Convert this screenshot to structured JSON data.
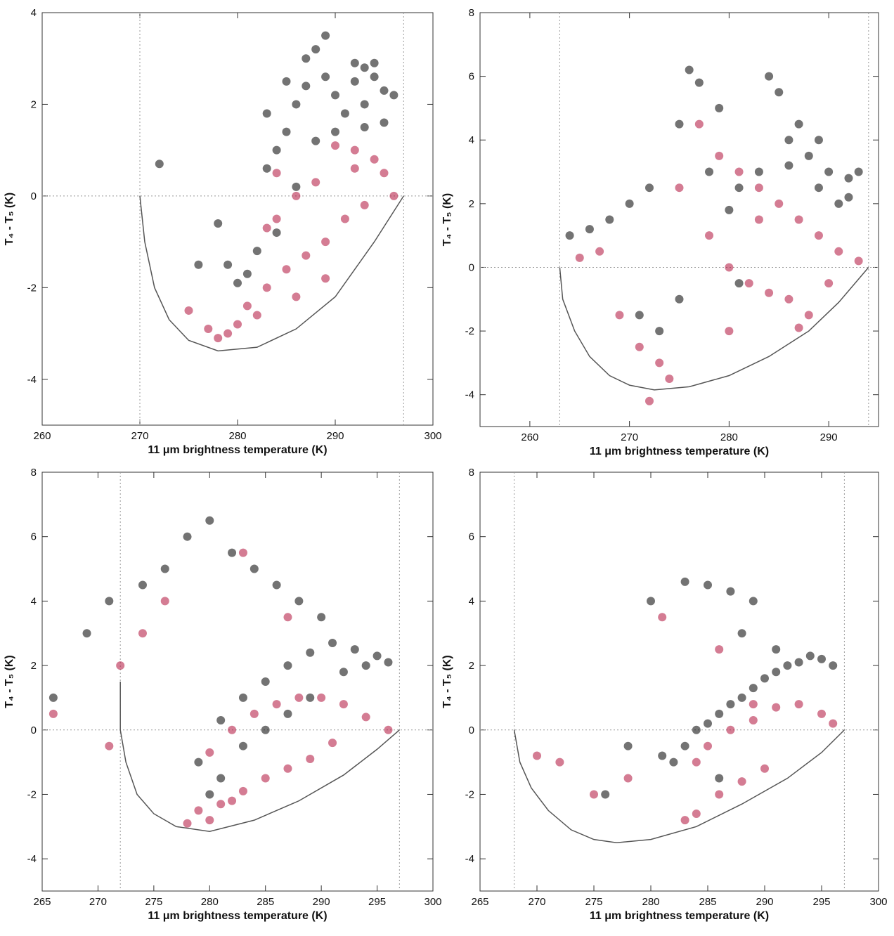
{
  "chart_data": [
    {
      "type": "scatter",
      "xlabel": "11 μm brightness temperature (K)",
      "ylabel": "T₄ - T₅ (K)",
      "xlim": [
        260,
        300
      ],
      "ylim": [
        -5,
        4
      ],
      "xticks": [
        260,
        270,
        280,
        290,
        300
      ],
      "yticks": [
        -4,
        -2,
        0,
        2,
        4
      ],
      "vlines": [
        270,
        297
      ],
      "hlines": [
        0
      ],
      "series": [
        {
          "color": "#000000",
          "x": [
            292,
            293,
            294,
            295,
            296,
            293,
            291,
            290,
            289,
            288,
            287,
            286,
            285,
            284,
            283,
            288,
            289,
            287,
            285,
            283,
            281,
            280,
            279,
            284,
            286,
            293,
            295,
            294,
            292,
            290,
            282,
            278,
            276,
            272
          ],
          "values": [
            2.5,
            2.8,
            2.6,
            2.3,
            2.2,
            2.0,
            1.8,
            2.2,
            2.6,
            3.2,
            2.4,
            2.0,
            1.4,
            1.0,
            0.6,
            1.2,
            3.5,
            3.0,
            2.5,
            1.8,
            -1.7,
            -1.9,
            -1.5,
            -0.8,
            0.2,
            1.5,
            1.6,
            2.9,
            2.9,
            1.4,
            -1.2,
            -0.6,
            -1.5,
            0.7
          ]
        },
        {
          "color": "#b0103a",
          "x": [
            295,
            296,
            294,
            292,
            290,
            288,
            286,
            284,
            283,
            291,
            293,
            289,
            287,
            285,
            283,
            281,
            280,
            279,
            278,
            282,
            286,
            289,
            277,
            275,
            284,
            292
          ],
          "values": [
            0.5,
            0.0,
            0.8,
            1.0,
            1.1,
            0.3,
            0.0,
            -0.5,
            -0.7,
            -0.5,
            -0.2,
            -1.0,
            -1.3,
            -1.6,
            -2.0,
            -2.4,
            -2.8,
            -3.0,
            -3.1,
            -2.6,
            -2.2,
            -1.8,
            -2.9,
            -2.5,
            0.5,
            0.6
          ]
        },
        {
          "type": "line",
          "color": "#555555",
          "x": [
            270,
            270.5,
            271.5,
            273,
            275,
            278,
            282,
            286,
            290,
            294,
            297
          ],
          "values": [
            0,
            -1,
            -2,
            -2.7,
            -3.15,
            -3.38,
            -3.3,
            -2.9,
            -2.2,
            -1.0,
            0
          ]
        }
      ]
    },
    {
      "type": "scatter",
      "xlabel": "11 μm brightness temperature (K)",
      "ylabel": "T₄ - T₅ (K)",
      "xlim": [
        255,
        295
      ],
      "ylim": [
        -5,
        8
      ],
      "xticks": [
        260,
        270,
        280,
        290
      ],
      "yticks": [
        -4,
        -2,
        0,
        2,
        4,
        6,
        8
      ],
      "vlines": [
        263,
        294
      ],
      "hlines": [
        0
      ],
      "series": [
        {
          "color": "#000000",
          "x": [
            288,
            290,
            292,
            293,
            289,
            287,
            285,
            284,
            286,
            291,
            283,
            281,
            279,
            277,
            276,
            275,
            278,
            280,
            272,
            270,
            268,
            266,
            264,
            271,
            273,
            275,
            281,
            286,
            289,
            292
          ],
          "values": [
            3.5,
            3.0,
            2.8,
            3.0,
            4.0,
            4.5,
            5.5,
            6.0,
            3.2,
            2.0,
            3.0,
            2.5,
            5.0,
            5.8,
            6.2,
            4.5,
            3.0,
            1.8,
            2.5,
            2.0,
            1.5,
            1.2,
            1.0,
            -1.5,
            -2.0,
            -1.0,
            -0.5,
            4.0,
            2.5,
            2.2
          ]
        },
        {
          "color": "#b0103a",
          "x": [
            293,
            291,
            289,
            287,
            285,
            283,
            281,
            279,
            278,
            280,
            282,
            284,
            286,
            288,
            290,
            277,
            275,
            273,
            271,
            269,
            267,
            265,
            272,
            274,
            280,
            283,
            287
          ],
          "values": [
            0.2,
            0.5,
            1.0,
            1.5,
            2.0,
            2.5,
            3.0,
            3.5,
            1.0,
            0.0,
            -0.5,
            -0.8,
            -1.0,
            -1.5,
            -0.5,
            4.5,
            2.5,
            -3.0,
            -2.5,
            -1.5,
            0.5,
            0.3,
            -4.2,
            -3.5,
            -2.0,
            1.5,
            -1.9
          ]
        },
        {
          "type": "line",
          "color": "#555555",
          "x": [
            263,
            263.3,
            264.5,
            266,
            268,
            270,
            272.5,
            276,
            280,
            284,
            288,
            291,
            294
          ],
          "values": [
            0,
            -1,
            -2,
            -2.8,
            -3.4,
            -3.7,
            -3.85,
            -3.75,
            -3.4,
            -2.8,
            -2.0,
            -1.1,
            0
          ]
        }
      ]
    },
    {
      "type": "scatter",
      "xlabel": "11 μm brightness temperature (K)",
      "ylabel": "T₄ - T₅ (K)",
      "xlim": [
        265,
        300
      ],
      "ylim": [
        -5,
        8
      ],
      "xticks": [
        265,
        270,
        275,
        280,
        285,
        290,
        295,
        300
      ],
      "yticks": [
        -4,
        -2,
        0,
        2,
        4,
        6,
        8
      ],
      "vlines": [
        272,
        297
      ],
      "hlines": [
        0
      ],
      "series": [
        {
          "color": "#000000",
          "x": [
            294,
            296,
            295,
            293,
            291,
            289,
            287,
            285,
            283,
            281,
            290,
            288,
            286,
            284,
            282,
            280,
            278,
            276,
            274,
            271,
            269,
            266,
            279,
            281,
            283,
            285,
            287,
            289,
            292,
            280
          ],
          "values": [
            2.0,
            2.1,
            2.3,
            2.5,
            2.7,
            2.4,
            2.0,
            1.5,
            1.0,
            0.3,
            3.5,
            4.0,
            4.5,
            5.0,
            5.5,
            6.5,
            6.0,
            5.0,
            4.5,
            4.0,
            3.0,
            1.0,
            -1.0,
            -1.5,
            -0.5,
            0.0,
            0.5,
            1.0,
            1.8,
            -2.0
          ]
        },
        {
          "color": "#b0103a",
          "x": [
            296,
            294,
            292,
            290,
            288,
            286,
            284,
            282,
            280,
            291,
            289,
            287,
            285,
            283,
            281,
            279,
            278,
            280,
            282,
            276,
            274,
            272,
            271,
            266,
            283,
            287
          ],
          "values": [
            0.0,
            0.4,
            0.8,
            1.0,
            1.0,
            0.8,
            0.5,
            0.0,
            -0.7,
            -0.4,
            -0.9,
            -1.2,
            -1.5,
            -1.9,
            -2.3,
            -2.5,
            -2.9,
            -2.8,
            -2.2,
            4.0,
            3.0,
            2.0,
            -0.5,
            0.5,
            5.5,
            3.5
          ]
        },
        {
          "type": "line",
          "color": "#555555",
          "x": [
            272,
            272,
            272.5,
            273.5,
            275,
            277,
            280,
            284,
            288,
            292,
            295,
            297
          ],
          "values": [
            1.5,
            0,
            -1,
            -2,
            -2.6,
            -3.0,
            -3.15,
            -2.8,
            -2.2,
            -1.4,
            -0.6,
            0
          ]
        }
      ]
    },
    {
      "type": "scatter",
      "xlabel": "11 μm brightness temperature (K)",
      "ylabel": "T₄ - T₅ (K)",
      "xlim": [
        265,
        300
      ],
      "ylim": [
        -5,
        8
      ],
      "xticks": [
        265,
        270,
        275,
        280,
        285,
        290,
        295,
        300
      ],
      "yticks": [
        -4,
        -2,
        0,
        2,
        4,
        6,
        8
      ],
      "vlines": [
        268,
        297
      ],
      "hlines": [
        0
      ],
      "series": [
        {
          "color": "#000000",
          "x": [
            296,
            295,
            294,
            293,
            292,
            291,
            290,
            289,
            288,
            287,
            286,
            285,
            284,
            283,
            282,
            281,
            289,
            287,
            285,
            283,
            280,
            278,
            276,
            286,
            288,
            291
          ],
          "values": [
            2.0,
            2.2,
            2.3,
            2.1,
            2.0,
            1.8,
            1.6,
            1.3,
            1.0,
            0.8,
            0.5,
            0.2,
            0.0,
            -0.5,
            -1.0,
            -0.8,
            4.0,
            4.3,
            4.5,
            4.6,
            4.0,
            -0.5,
            -2.0,
            -1.5,
            3.0,
            2.5
          ]
        },
        {
          "color": "#b0103a",
          "x": [
            296,
            295,
            293,
            291,
            289,
            287,
            285,
            284,
            290,
            288,
            286,
            284,
            289,
            286,
            281,
            278,
            275,
            272,
            270,
            283
          ],
          "values": [
            0.2,
            0.5,
            0.8,
            0.7,
            0.3,
            0.0,
            -0.5,
            -1.0,
            -1.2,
            -1.6,
            -2.0,
            -2.6,
            0.8,
            2.5,
            3.5,
            -1.5,
            -2.0,
            -1.0,
            -0.8,
            -2.8
          ]
        },
        {
          "type": "line",
          "color": "#555555",
          "x": [
            268,
            268.5,
            269.5,
            271,
            273,
            275,
            277,
            280,
            284,
            288,
            292,
            295,
            297
          ],
          "values": [
            0,
            -1,
            -1.8,
            -2.5,
            -3.1,
            -3.4,
            -3.5,
            -3.4,
            -3.0,
            -2.3,
            -1.5,
            -0.7,
            0
          ]
        }
      ]
    }
  ]
}
